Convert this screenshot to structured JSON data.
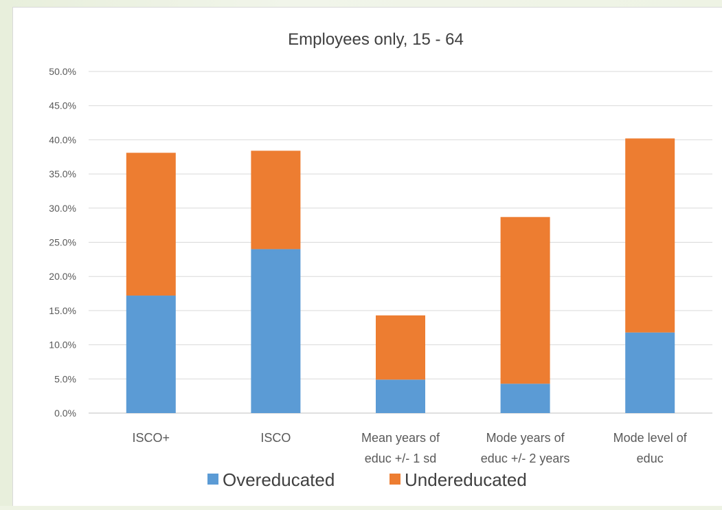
{
  "colors": {
    "overeducated": "#5b9bd5",
    "undereducated": "#ed7d31"
  },
  "chart_data": {
    "type": "bar",
    "stacked": true,
    "title": "Employees  only, 15 - 64",
    "xlabel": "",
    "ylabel": "",
    "ylim": [
      0,
      50
    ],
    "yticks": [
      0,
      5,
      10,
      15,
      20,
      25,
      30,
      35,
      40,
      45,
      50
    ],
    "ytick_labels": [
      "0.0%",
      "5.0%",
      "10.0%",
      "15.0%",
      "20.0%",
      "25.0%",
      "30.0%",
      "35.0%",
      "40.0%",
      "45.0%",
      "50.0%"
    ],
    "grid": true,
    "legend_position": "bottom",
    "categories": [
      [
        "ISCO+"
      ],
      [
        "ISCO"
      ],
      [
        "Mean years of",
        "educ +/- 1 sd"
      ],
      [
        "Mode years of",
        "educ +/- 2 years"
      ],
      [
        "Mode level of",
        "educ"
      ]
    ],
    "series": [
      {
        "name": "Overeducated",
        "values": [
          17.2,
          24.0,
          4.9,
          4.3,
          11.8
        ]
      },
      {
        "name": "Undereducated",
        "values": [
          20.9,
          14.4,
          9.4,
          24.4,
          28.4
        ]
      }
    ]
  }
}
